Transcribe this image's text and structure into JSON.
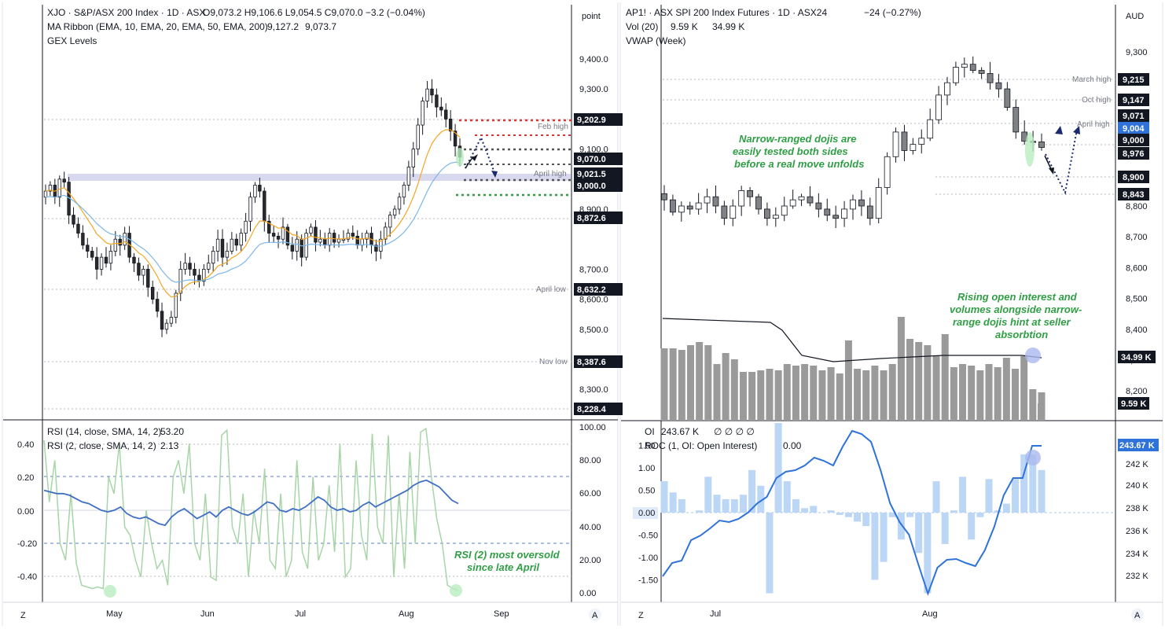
{
  "colors": {
    "up": "#ffffff",
    "down": "#808285",
    "wick": "#131722",
    "ema10": "#f5a623",
    "ema20": "#7cb7ea",
    "rsi14": "#3f6fc4",
    "rsi2": "#a8d5a8",
    "vol": "#9a9a9a",
    "roc_bar": "#bcd6f5",
    "oi": "#2f72d9",
    "grid": "#d0d3dc",
    "red": "#e03131",
    "green": "#2f9e44",
    "gray": "#555"
  },
  "left": {
    "legend1": "XJO · S&P/ASX 200 Index · 1D · ASX",
    "legend1_o": "O9,073.2",
    "legend1_h": "H9,106.6",
    "legend1_l": "L9,054.5",
    "legend1_c": "C9,070.0",
    "legend1_chg": "−3.2 (−0.04%)",
    "legend2": "MA Ribbon (EMA, 10, EMA, 20, EMA, 50, EMA, 200)",
    "legend2_v1": "9,127.2",
    "legend2_v2": "9,073.7",
    "legend3": "GEX Levels",
    "unit": "point",
    "xticks": [
      "May",
      "Jun",
      "Jul",
      "Aug",
      "Sep"
    ],
    "price_ticks": [
      "9,400.0",
      "9,300.0",
      "9,100.0",
      "8,900.0",
      "8,700.0",
      "8,600.0",
      "8,500.0",
      "8,300.0"
    ],
    "tags": [
      "9,202.9",
      "9,070.0",
      "9,021.5",
      "9,000.0",
      "8,872.6",
      "8,632.2",
      "8,387.6",
      "8,228.4"
    ],
    "levels": {
      "feb_high": "Feb high",
      "april_high": "April high",
      "april_low": "April low",
      "nov_low": "Nov low"
    },
    "rsi_legend1": "RSI (14, close, SMA, 14, 2)",
    "rsi_val1": "53.20",
    "rsi_legend2": "RSI (2, close, SMA, 14, 2)",
    "rsi_val2": "2.13",
    "rsi_left_ticks": [
      "0.40",
      "0.20",
      "0.00",
      "-0.20",
      "-0.40"
    ],
    "rsi_right_ticks": [
      "100.00",
      "80.00",
      "60.00",
      "40.00",
      "20.00",
      "0.00"
    ],
    "annotation": [
      "RSI (2) most oversold",
      "since late April"
    ],
    "z_btn": "Z",
    "a_btn": "A"
  },
  "right": {
    "legend1": "AP1! · ASX SPI 200 Index Futures · 1D · ASX24",
    "legend1_chg": "−24 (−0.27%)",
    "legend2": "Vol (20)",
    "legend2_v1": "9.59 K",
    "legend2_v2": "34.99 K",
    "legend3": "VWAP (Week)",
    "unit": "AUD",
    "xticks": [
      "Jul",
      "Aug"
    ],
    "price_ticks": [
      "9,300",
      "8,800",
      "8,700",
      "8,600",
      "8,500",
      "8,400",
      "8,300",
      "8,200"
    ],
    "tags": [
      "9,215",
      "9,147",
      "9,071",
      "9,004",
      "9,000",
      "8,976",
      "8,900",
      "8,843",
      "34.99 K",
      "9.59 K"
    ],
    "levels": {
      "march_high": "March high",
      "oct_high": "Oct high",
      "april_high": "April high"
    },
    "annotation1": [
      "Narrow-ranged dojis are",
      "easily tested both sides",
      "before a real move unfolds"
    ],
    "annotation2": [
      "Rising open interest and",
      "volumes alongside narrow-",
      "range dojis hint at seller",
      "absorbtion"
    ],
    "oi_legend1": "OI",
    "oi_val1": "243.67 K",
    "oi_val_rest": "∅ ∅ ∅ ∅",
    "oi_legend2": "ROC (1, OI: Open Interest)",
    "oi_val2": "0.00",
    "roc_ticks": [
      "1.50",
      "1.00",
      "0.50",
      "-0.50",
      "-1.00",
      "-1.50"
    ],
    "roc_zero": "0.00",
    "oi_ticks": [
      "242 K",
      "240 K",
      "238 K",
      "236 K",
      "234 K",
      "232 K"
    ],
    "oi_tag": "243.67 K",
    "z_btn": "Z",
    "a_btn": "A"
  },
  "chart_data": [
    {
      "type": "candlestick",
      "title": "XJO · S&P/ASX 200 Index · 1D · ASX",
      "xlabel": "",
      "ylabel": "point",
      "ylim": [
        8150,
        9500
      ],
      "x": [
        "May",
        "Jun",
        "Jul",
        "Aug",
        "Sep"
      ],
      "gex_levels": [
        9202.9,
        9150,
        9100,
        9070,
        9050,
        9000,
        8950
      ],
      "reference_levels": {
        "Feb high": 9150,
        "April high": 9021.5,
        "April low": 8632.2,
        "Nov low": 8387.6
      },
      "last": {
        "open": 9073.2,
        "high": 9106.6,
        "low": 9054.5,
        "close": 9070.0,
        "change": -3.2
      }
    },
    {
      "type": "line",
      "title": "RSI (14) / RSI (2)",
      "ylim": [
        0,
        100
      ],
      "series": [
        {
          "name": "RSI (14, close, SMA, 14, 2)",
          "last": 53.2
        },
        {
          "name": "RSI (2, close, SMA, 14, 2)",
          "last": 2.13
        }
      ]
    },
    {
      "type": "candlestick",
      "title": "AP1! · ASX SPI 200 Index Futures · 1D · ASX24",
      "ylabel": "AUD",
      "ylim": [
        8150,
        9350
      ],
      "x": [
        "Jul",
        "Aug"
      ],
      "reference_levels": {
        "March high": 9215,
        "Oct high": 9147,
        "April high": 9071
      },
      "tags": [
        9215,
        9147,
        9071,
        9004,
        9000,
        8976,
        8900,
        8843
      ],
      "volume": {
        "last": "9.59 K",
        "ma20": "34.99 K"
      }
    },
    {
      "type": "bar",
      "title": "OI / ROC (1, OI: Open Interest)",
      "ylim": [
        -1.8,
        1.8
      ],
      "series": [
        {
          "name": "OI",
          "last": "243.67 K"
        },
        {
          "name": "ROC (1, OI: Open Interest)",
          "last": 0.0
        }
      ]
    }
  ]
}
